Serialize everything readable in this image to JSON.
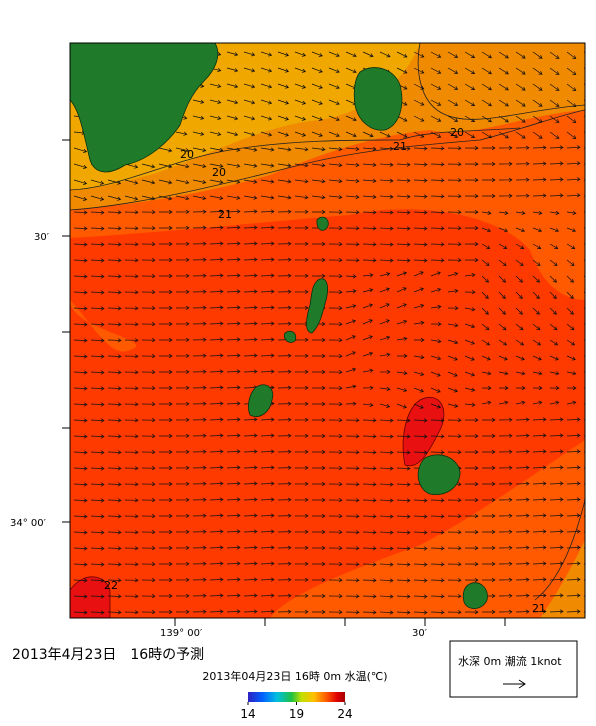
{
  "map": {
    "title": "2013年4月23日　16時の予測",
    "subtitle": "2013年04月23日 16時 0m 水温(℃)",
    "y_labels": [
      "30′",
      "34° 00′"
    ],
    "x_labels": [
      "139° 00′",
      "30′"
    ],
    "contour_labels": [
      20,
      20,
      21,
      20,
      21,
      22,
      21
    ],
    "colorbar": {
      "lim": [
        14,
        24
      ],
      "ticks": [
        14,
        19,
        24
      ]
    },
    "legend": "水深 0m 潮流 1knot"
  }
}
